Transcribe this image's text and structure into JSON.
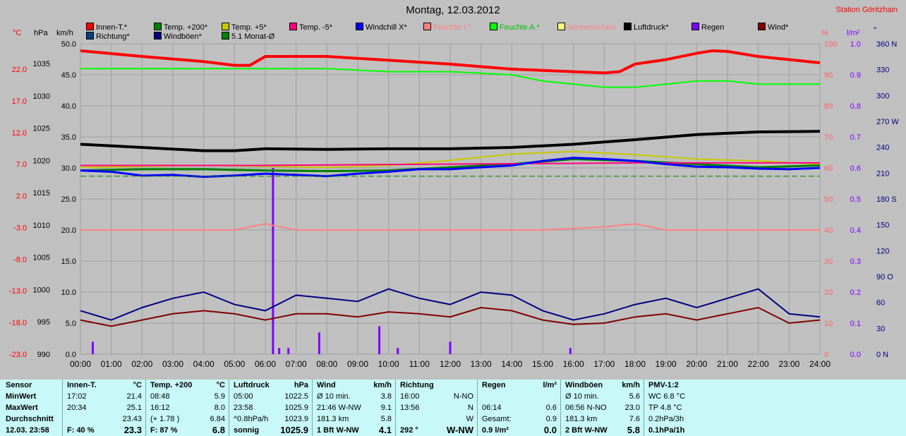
{
  "header": {
    "title": "Montag, 12.03.2012",
    "station": "Station Göritzhain"
  },
  "legend": [
    {
      "label": "Innen-T.*",
      "color": "#ff0000"
    },
    {
      "label": "Temp. +200*",
      "color": "#008000"
    },
    {
      "label": "Temp. +5*",
      "color": "#c8c800"
    },
    {
      "label": "Temp. -5*",
      "color": "#ff0080"
    },
    {
      "label": "Windchill X*",
      "color": "#0000ff"
    },
    {
      "label": "Feuchte I.*",
      "color": "#ff8080"
    },
    {
      "label": "Feuchte A.*",
      "color": "#00ff00"
    },
    {
      "label": "Sonnenschein",
      "color": "#ffff80"
    },
    {
      "label": "Luftdruck*",
      "color": "#000000"
    },
    {
      "label": "Regen",
      "color": "#8000ff"
    },
    {
      "label": "Wind*",
      "color": "#800000"
    },
    {
      "label": "Richtung*",
      "color": "#004080"
    },
    {
      "label": "Windböen*",
      "color": "#000080"
    },
    {
      "label": "5.1 Monat-Ø",
      "color": "#008000"
    }
  ],
  "chart_data": {
    "type": "line",
    "x_ticks": [
      "00:00",
      "01:00",
      "02:00",
      "03:00",
      "04:00",
      "05:00",
      "06:00",
      "07:00",
      "08:00",
      "09:00",
      "10:00",
      "11:00",
      "12:00",
      "13:00",
      "14:00",
      "15:00",
      "16:00",
      "17:00",
      "18:00",
      "19:00",
      "20:00",
      "21:00",
      "22:00",
      "23:00",
      "24:00"
    ],
    "axes": {
      "temp_c": {
        "unit": "°C",
        "ticks": [
          "22.0",
          "17.0",
          "12.0",
          "7.0",
          "2.0",
          "-3.0",
          "-8.0",
          "-13.0",
          "-18.0",
          "-23.0"
        ]
      },
      "pressure_hpa": {
        "unit": "hPa",
        "ticks": [
          "1035",
          "1030",
          "1025",
          "1020",
          "1015",
          "1010",
          "1005",
          "1000",
          "995",
          "990"
        ]
      },
      "wind_kmh": {
        "unit": "km/h",
        "ticks": [
          "50.0",
          "45.0",
          "40.0",
          "35.0",
          "30.0",
          "25.0",
          "20.0",
          "15.0",
          "10.0",
          "5.0",
          "0.0"
        ]
      },
      "humidity_pct": {
        "unit": "%",
        "ticks": [
          "100",
          "90",
          "80",
          "70",
          "60",
          "50",
          "40",
          "30",
          "20",
          "10",
          "0"
        ]
      },
      "rain_lm2": {
        "unit": "l/m²",
        "ticks": [
          "1.0",
          "0.9",
          "0.8",
          "0.7",
          "0.6",
          "0.5",
          "0.4",
          "0.3",
          "0.2",
          "0.1",
          "0.0"
        ]
      },
      "direction_deg": {
        "unit": "°",
        "ticks": [
          "360 N",
          "330",
          "300",
          "270 W",
          "240",
          "210",
          "180 S",
          "150",
          "120",
          "90 O",
          "60",
          "30",
          "0 N"
        ]
      }
    },
    "series": [
      {
        "name": "Innen-T.*",
        "hours": [
          0,
          2,
          4,
          5,
          5.5,
          6,
          8,
          10,
          12,
          14,
          16,
          17,
          17.5,
          18,
          19,
          20,
          20.5,
          21,
          22,
          23,
          24
        ],
        "values": [
          24.9,
          24.0,
          23.2,
          22.6,
          22.6,
          24.0,
          24.0,
          23.4,
          22.8,
          22.0,
          21.6,
          21.4,
          21.6,
          22.8,
          23.5,
          24.5,
          24.9,
          24.8,
          24.0,
          23.5,
          23.0
        ]
      },
      {
        "name": "Feuchte A.*",
        "hours": [
          0,
          2,
          4,
          6,
          8,
          10,
          12,
          14,
          15,
          16,
          17,
          18,
          19,
          20,
          21,
          22,
          23,
          24
        ],
        "values": [
          92,
          92,
          92,
          92,
          92,
          91,
          91,
          90,
          88,
          87,
          86,
          86,
          87,
          88,
          88,
          87,
          87,
          87
        ]
      },
      {
        "name": "Luftdruck*",
        "hours": [
          0,
          2,
          4,
          5,
          6,
          8,
          10,
          12,
          14,
          16,
          18,
          20,
          22,
          24
        ],
        "values": [
          1022.5,
          1022.0,
          1021.5,
          1021.5,
          1021.8,
          1021.7,
          1021.8,
          1021.8,
          1022.0,
          1022.5,
          1023.2,
          1024.0,
          1024.4,
          1024.5
        ]
      },
      {
        "name": "Temp. +5*",
        "hours": [
          0,
          4,
          8,
          10,
          12,
          14,
          16,
          18,
          20,
          22,
          24
        ],
        "values": [
          6.5,
          6.8,
          6.5,
          6.8,
          7.6,
          8.6,
          9.0,
          8.5,
          7.8,
          7.5,
          7.0
        ]
      },
      {
        "name": "Temp. +200*",
        "hours": [
          0,
          2,
          4,
          6,
          8,
          10,
          12,
          14,
          16,
          18,
          20,
          22,
          24
        ],
        "values": [
          6.0,
          6.2,
          6.2,
          6.0,
          5.9,
          6.0,
          6.5,
          7.0,
          7.8,
          7.5,
          7.0,
          6.5,
          6.8
        ]
      },
      {
        "name": "Temp. -5*",
        "hours": [
          0,
          6,
          12,
          18,
          24
        ],
        "values": [
          6.8,
          6.8,
          7.0,
          7.2,
          7.2
        ]
      },
      {
        "name": "Windchill X*",
        "hours": [
          0,
          1,
          2,
          3,
          4,
          5,
          6,
          7,
          8,
          9,
          10,
          11,
          12,
          13,
          14,
          15,
          16,
          17,
          18,
          19,
          20,
          21,
          22,
          23,
          24
        ],
        "values": [
          6.0,
          5.8,
          5.2,
          5.3,
          5.0,
          5.2,
          5.5,
          5.3,
          5.1,
          5.5,
          5.8,
          6.2,
          6.2,
          6.5,
          6.8,
          7.5,
          8.0,
          7.8,
          7.5,
          7.0,
          6.6,
          6.5,
          6.3,
          6.2,
          6.4
        ]
      },
      {
        "name": "5.1 Monat-Ø",
        "hours": [
          0,
          24
        ],
        "values": [
          5.1,
          5.1
        ]
      },
      {
        "name": "Feuchte I.*",
        "hours": [
          0,
          3,
          5,
          6,
          6.5,
          7,
          9,
          12,
          15,
          17,
          18,
          18.5,
          19,
          20,
          21,
          22,
          24
        ],
        "values": [
          40,
          40,
          40,
          42,
          41,
          40,
          40,
          40,
          40,
          41,
          42,
          41,
          40,
          40,
          40,
          40,
          40
        ]
      },
      {
        "name": "Wind*",
        "hours": [
          0,
          1,
          2,
          3,
          4,
          5,
          6,
          7,
          8,
          9,
          10,
          11,
          12,
          13,
          14,
          15,
          16,
          17,
          18,
          19,
          20,
          21,
          22,
          23,
          24
        ],
        "values": [
          5.5,
          4.5,
          5.5,
          6.5,
          7.0,
          6.5,
          5.5,
          6.5,
          6.5,
          6.0,
          6.8,
          6.5,
          6.0,
          7.5,
          7.0,
          5.5,
          4.8,
          5.0,
          6.0,
          6.5,
          5.5,
          6.5,
          7.5,
          5.0,
          5.5
        ]
      },
      {
        "name": "Windböen*",
        "hours": [
          0,
          1,
          2,
          3,
          4,
          5,
          6,
          7,
          8,
          9,
          10,
          11,
          12,
          13,
          14,
          15,
          16,
          17,
          18,
          19,
          20,
          21,
          22,
          23,
          24
        ],
        "values": [
          7.0,
          5.5,
          7.5,
          9.0,
          10.0,
          8.0,
          7.0,
          9.5,
          9.0,
          8.5,
          10.5,
          9.0,
          8.0,
          10.0,
          9.5,
          7.0,
          5.5,
          6.5,
          8.0,
          9.0,
          7.5,
          9.0,
          10.5,
          6.5,
          6.0
        ]
      }
    ],
    "rain_bars": {
      "hours": [
        0.4,
        6.25,
        6.45,
        6.75,
        7.75,
        9.7,
        10.3,
        12.0,
        15.9
      ],
      "values": [
        0.04,
        0.6,
        0.02,
        0.02,
        0.07,
        0.09,
        0.02,
        0.04,
        0.02
      ]
    },
    "grid": true
  },
  "table": {
    "labels": {
      "sensor": "Sensor",
      "min": "MinWert",
      "max": "MaxWert",
      "avg": "Durchschnitt",
      "now": "12.03. 23:58"
    },
    "cols": [
      {
        "title": "Innen-T.",
        "unit": "°C",
        "rows": [
          [
            "17:02",
            "21.4"
          ],
          [
            "20:34",
            "25.1"
          ],
          [
            "",
            "23.43"
          ],
          [
            "F: 40 %",
            "23.3"
          ]
        ]
      },
      {
        "title": "Temp. +200",
        "unit": "°C",
        "rows": [
          [
            "08:48",
            "5.9"
          ],
          [
            "16:12",
            "8.0"
          ],
          [
            "(+ 1.78 )",
            "6.84"
          ],
          [
            "F: 87 %",
            "6.8"
          ]
        ]
      },
      {
        "title": "Luftdruck",
        "unit": "hPa",
        "rows": [
          [
            "05:00",
            "1022.5"
          ],
          [
            "23:58",
            "1025.9"
          ],
          [
            "^0.8hPa/h",
            "1023.9"
          ],
          [
            "sonnig",
            "1025.9"
          ]
        ]
      },
      {
        "title": "Wind",
        "unit": "km/h",
        "rows": [
          [
            "Ø 10 min.",
            "3.8"
          ],
          [
            "21:46   W-NW",
            "9.1"
          ],
          [
            "181.3 km",
            "5.8"
          ],
          [
            "1 Bft W-NW",
            "4.1"
          ]
        ]
      },
      {
        "title": "Richtung",
        "unit": "",
        "rows": [
          [
            "16:00",
            "N-NO"
          ],
          [
            "13:56",
            "N"
          ],
          [
            "",
            "W"
          ],
          [
            "292 °",
            "W-NW"
          ]
        ]
      },
      {
        "title": "Regen",
        "unit": "l/m²",
        "rows": [
          [
            "",
            ""
          ],
          [
            "06:14",
            "0.6"
          ],
          [
            "Gesamt:",
            "0.9"
          ],
          [
            "0.9 l/m²",
            "0.0"
          ]
        ]
      },
      {
        "title": "Windböen",
        "unit": "km/h",
        "rows": [
          [
            "Ø 10 min.",
            "5.6"
          ],
          [
            "06:56   N-NO",
            "23.0"
          ],
          [
            "181.3 km",
            "7.6"
          ],
          [
            "2 Bft W-NW",
            "5.8"
          ]
        ]
      },
      {
        "title": "PMV-1:2",
        "unit": "",
        "rows": [
          [
            "WC 6.8 °C",
            ""
          ],
          [
            "TP 4.8 °C",
            ""
          ],
          [
            "0.2hPa/3h",
            ""
          ],
          [
            "0.1hPa/1h",
            ""
          ]
        ]
      }
    ]
  }
}
